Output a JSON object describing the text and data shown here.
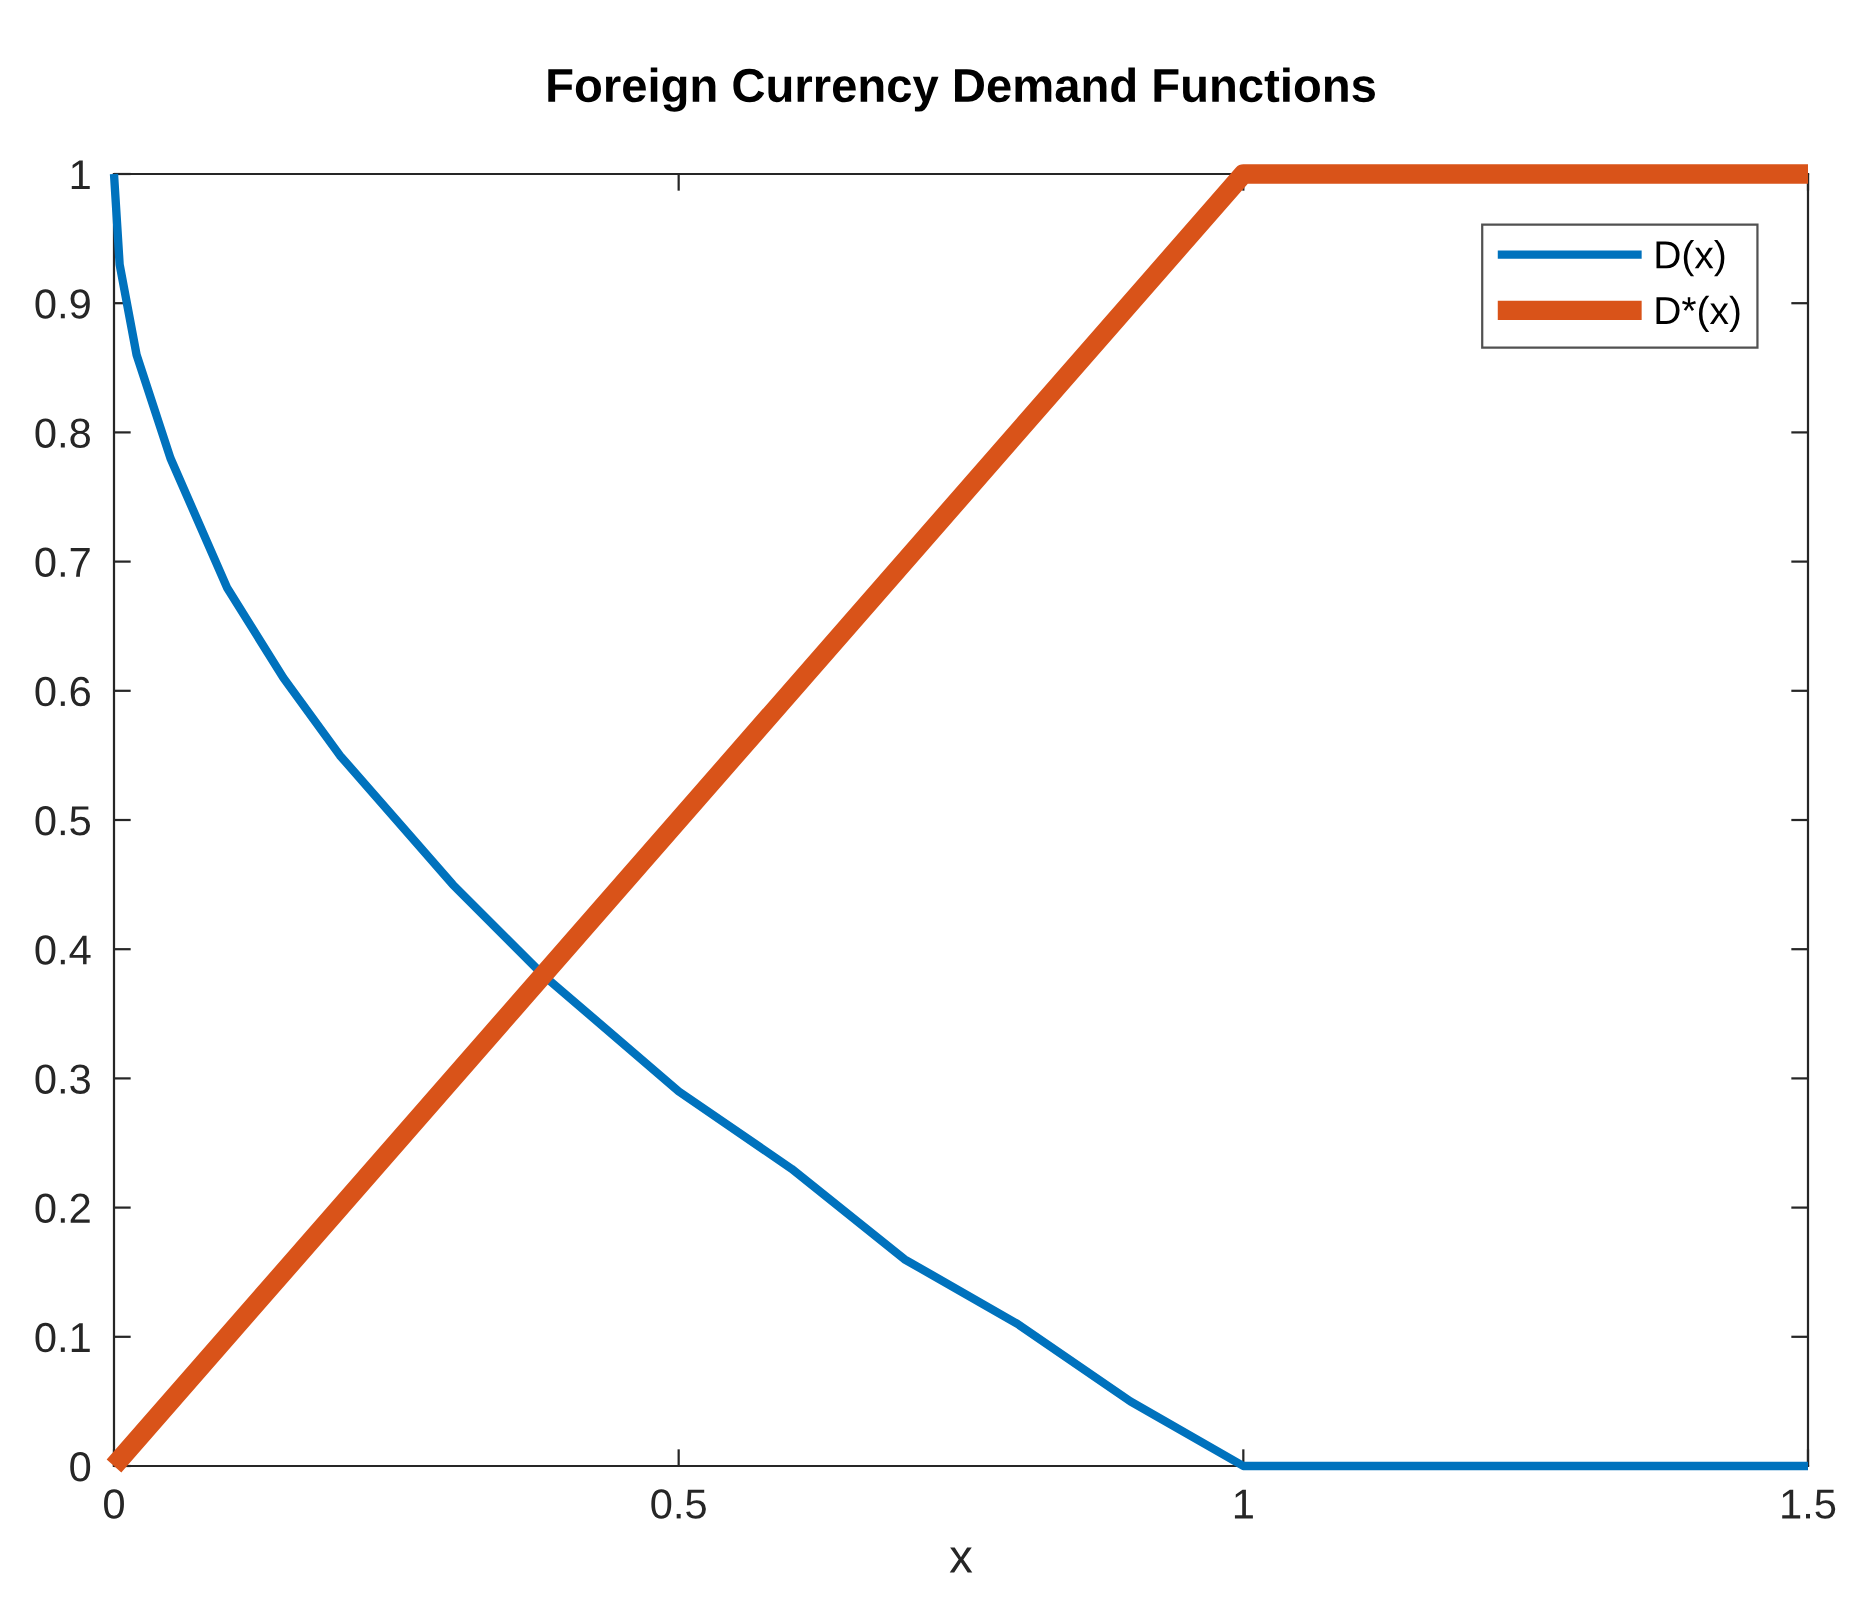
{
  "chart_data": {
    "type": "line",
    "title": "Foreign Currency Demand Functions",
    "xlabel": "x",
    "series": [
      {
        "name": "D(x)",
        "color": "#0072bd",
        "x": [
          0,
          0.005,
          0.02,
          0.05,
          0.1,
          0.15,
          0.2,
          0.3,
          0.38,
          0.5,
          0.6,
          0.7,
          0.8,
          0.9,
          1,
          1.5
        ],
        "values": [
          1,
          0.93,
          0.86,
          0.78,
          0.68,
          0.61,
          0.55,
          0.45,
          0.38,
          0.29,
          0.23,
          0.16,
          0.11,
          0.05,
          0,
          0
        ]
      },
      {
        "name": "D*(x)",
        "color": "#d95319",
        "x": [
          0,
          1,
          1.5
        ],
        "values": [
          0,
          1,
          1
        ]
      }
    ],
    "xlim": [
      0,
      1.5
    ],
    "xticks": [
      0,
      0.5,
      1,
      1.5
    ],
    "ylim": [
      0,
      1
    ],
    "yticks": [
      0,
      0.1,
      0.2,
      0.3,
      0.4,
      0.5,
      0.6,
      0.7,
      0.8,
      0.9,
      1
    ],
    "grid": false,
    "legend": "top right",
    "line_style": "solid",
    "marker": "none"
  }
}
